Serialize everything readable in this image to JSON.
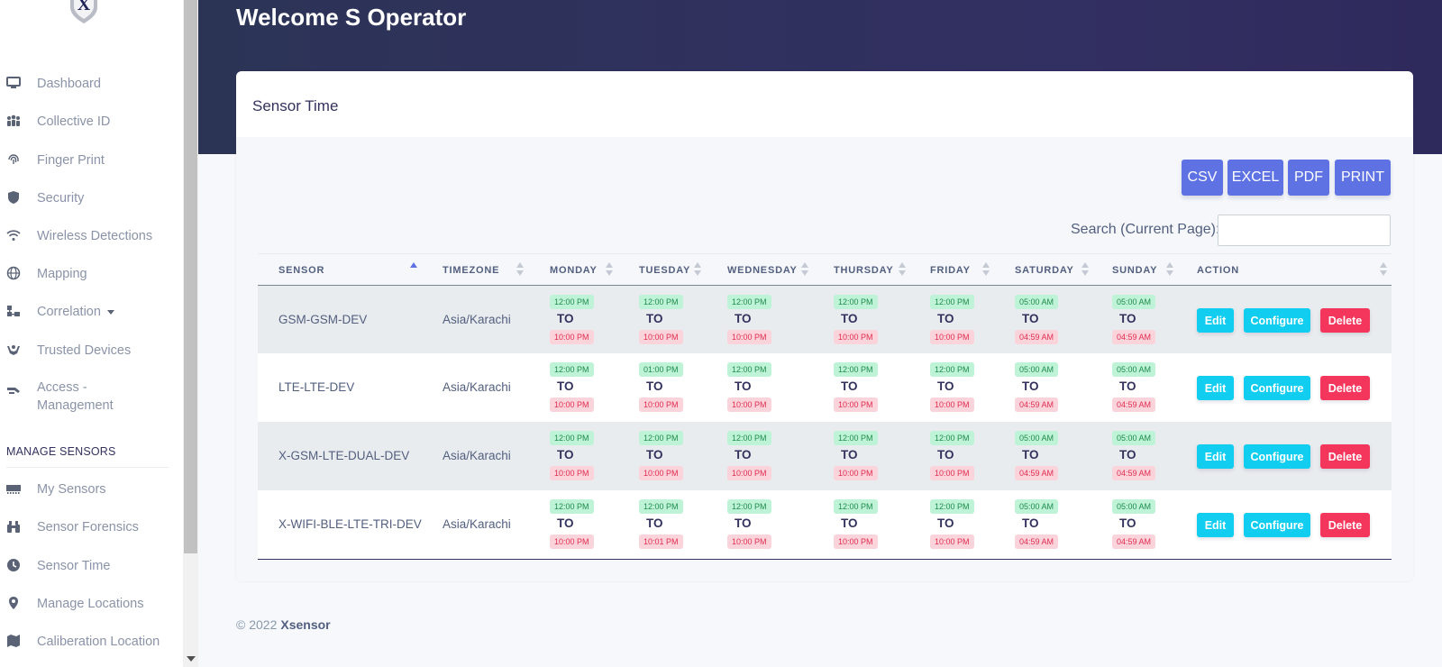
{
  "sidebar": {
    "items": [
      {
        "label": "Dashboard",
        "icon": "monitor-icon"
      },
      {
        "label": "Collective ID",
        "icon": "users-icon"
      },
      {
        "label": "Finger Print",
        "icon": "fingerprint-icon"
      },
      {
        "label": "Security",
        "icon": "shield-icon"
      },
      {
        "label": "Wireless Detections",
        "icon": "wifi-icon"
      },
      {
        "label": "Mapping",
        "icon": "globe-icon"
      },
      {
        "label": "Correlation",
        "icon": "diagram-icon"
      },
      {
        "label": "Trusted Devices",
        "icon": "hands-icon"
      },
      {
        "label": "Access - Management",
        "icon": "key-icon"
      }
    ],
    "heading": "MANAGE SENSORS",
    "sensor_items": [
      {
        "label": "My Sensors",
        "icon": "memory-icon"
      },
      {
        "label": "Sensor Forensics",
        "icon": "binoculars-icon"
      },
      {
        "label": "Sensor Time",
        "icon": "clock-icon"
      },
      {
        "label": "Manage Locations",
        "icon": "map-pin-icon"
      },
      {
        "label": "Caliberation Location",
        "icon": "map-icon"
      }
    ]
  },
  "header": {
    "welcome": "Welcome S Operator"
  },
  "card": {
    "title": "Sensor Time"
  },
  "export_buttons": [
    "CSV",
    "EXCEL",
    "PDF",
    "PRINT"
  ],
  "search": {
    "label": "Search (Current Page):",
    "value": ""
  },
  "table": {
    "columns": [
      "SENSOR",
      "TIMEZONE",
      "MONDAY",
      "TUESDAY",
      "WEDNESDAY",
      "THURSDAY",
      "FRIDAY",
      "SATURDAY",
      "SUNDAY",
      "ACTION"
    ],
    "to_word": "TO",
    "rows": [
      {
        "sensor": "GSM-GSM-DEV",
        "timezone": "Asia/Karachi",
        "days": [
          [
            "12:00 PM",
            "10:00 PM"
          ],
          [
            "12:00 PM",
            "10:00 PM"
          ],
          [
            "12:00 PM",
            "10:00 PM"
          ],
          [
            "12:00 PM",
            "10:00 PM"
          ],
          [
            "12:00 PM",
            "10:00 PM"
          ],
          [
            "05:00 AM",
            "04:59 AM"
          ],
          [
            "05:00 AM",
            "04:59 AM"
          ]
        ]
      },
      {
        "sensor": "LTE-LTE-DEV",
        "timezone": "Asia/Karachi",
        "days": [
          [
            "12:00 PM",
            "10:00 PM"
          ],
          [
            "01:00 PM",
            "10:00 PM"
          ],
          [
            "12:00 PM",
            "10:00 PM"
          ],
          [
            "12:00 PM",
            "10:00 PM"
          ],
          [
            "12:00 PM",
            "10:00 PM"
          ],
          [
            "05:00 AM",
            "04:59 AM"
          ],
          [
            "05:00 AM",
            "04:59 AM"
          ]
        ]
      },
      {
        "sensor": "X-GSM-LTE-DUAL-DEV",
        "timezone": "Asia/Karachi",
        "days": [
          [
            "12:00 PM",
            "10:00 PM"
          ],
          [
            "12:00 PM",
            "10:00 PM"
          ],
          [
            "12:00 PM",
            "10:00 PM"
          ],
          [
            "12:00 PM",
            "10:00 PM"
          ],
          [
            "12:00 PM",
            "10:00 PM"
          ],
          [
            "05:00 AM",
            "04:59 AM"
          ],
          [
            "05:00 AM",
            "04:59 AM"
          ]
        ]
      },
      {
        "sensor": "X-WIFI-BLE-LTE-TRI-DEV",
        "timezone": "Asia/Karachi",
        "days": [
          [
            "12:00 PM",
            "10:00 PM"
          ],
          [
            "12:00 PM",
            "10:01 PM"
          ],
          [
            "12:00 PM",
            "10:00 PM"
          ],
          [
            "12:00 PM",
            "10:00 PM"
          ],
          [
            "12:00 PM",
            "10:00 PM"
          ],
          [
            "05:00 AM",
            "04:59 AM"
          ],
          [
            "05:00 AM",
            "04:59 AM"
          ]
        ]
      }
    ],
    "actions": {
      "edit": "Edit",
      "configure": "Configure",
      "delete": "Delete"
    }
  },
  "footer": {
    "copyright": "© 2022",
    "brand": "Xsensor"
  }
}
